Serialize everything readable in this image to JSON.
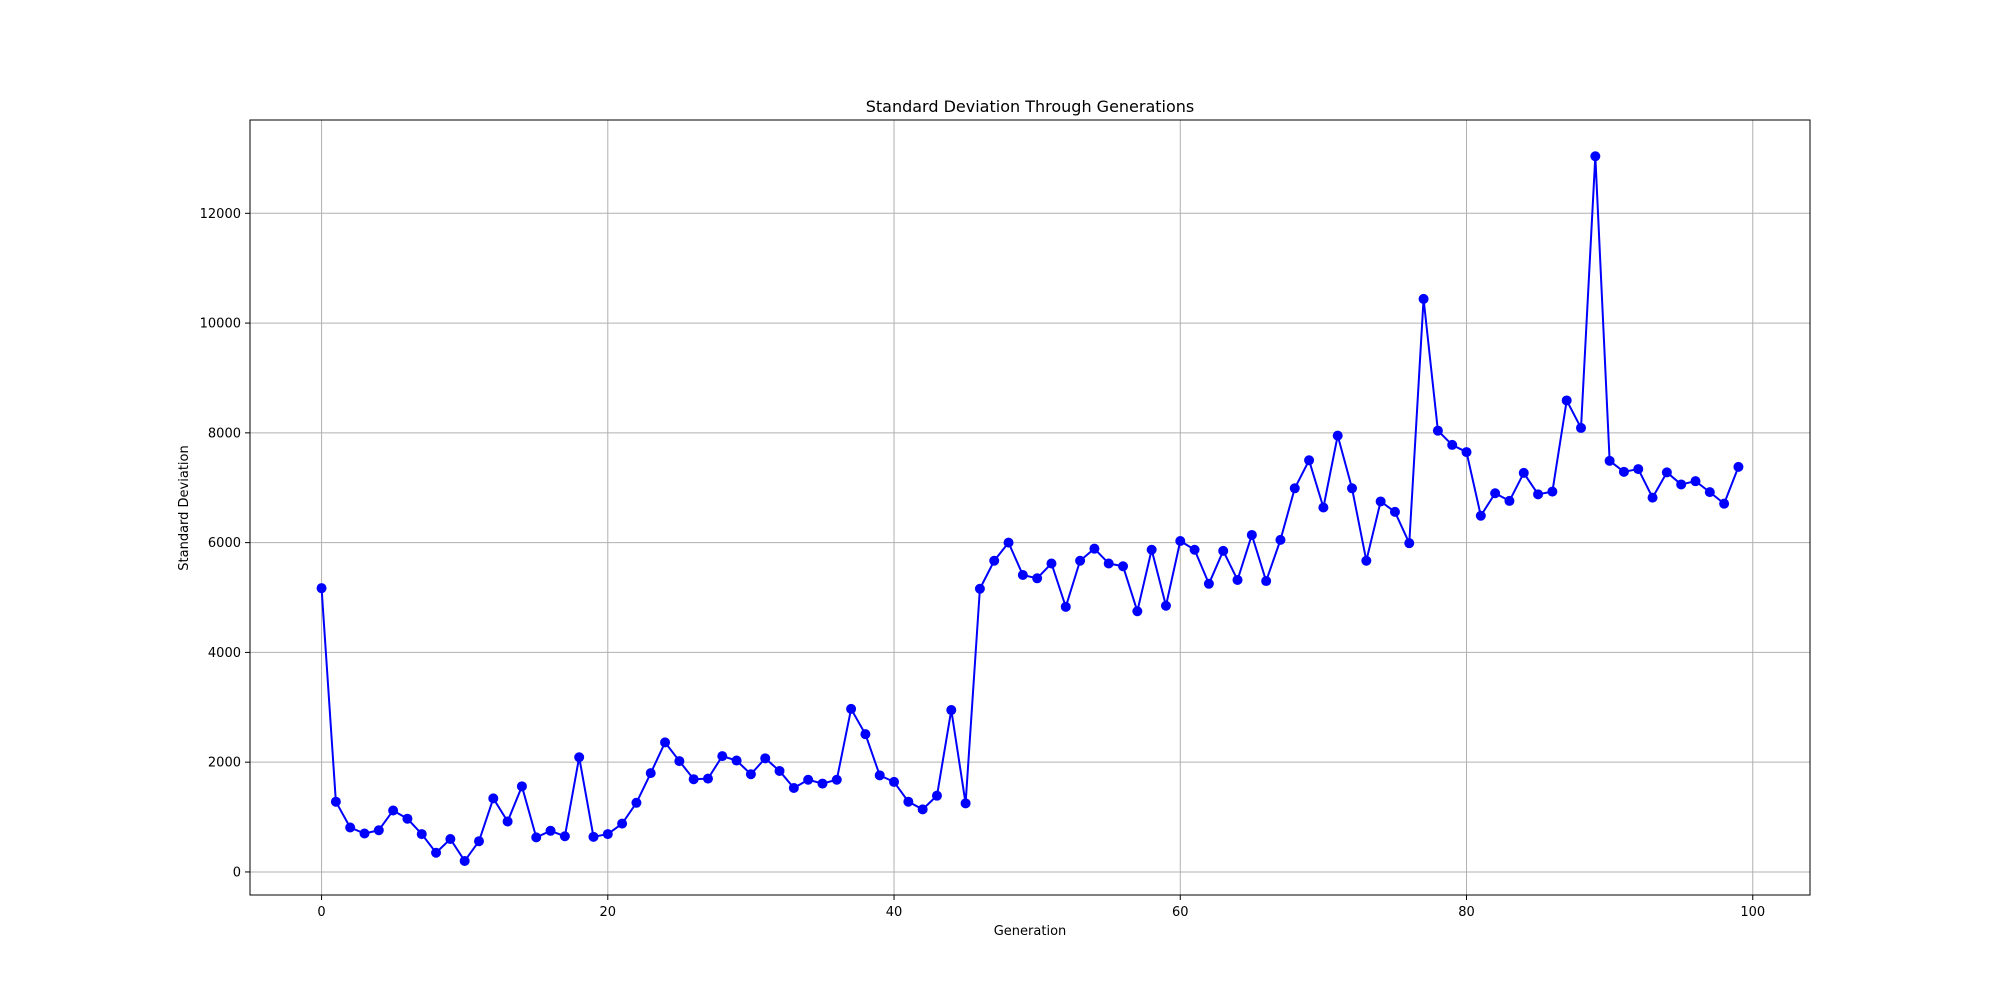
{
  "chart_data": {
    "type": "line",
    "title": "Standard Deviation Through Generations",
    "xlabel": "Generation",
    "ylabel": "Standard Deviation",
    "xlim": [
      -5,
      104
    ],
    "ylim": [
      -420,
      13700
    ],
    "xticks": [
      0,
      20,
      40,
      60,
      80,
      100
    ],
    "yticks": [
      0,
      2000,
      4000,
      6000,
      8000,
      10000,
      12000
    ],
    "grid": true,
    "legend": "none",
    "colors": {
      "series": "#0000ff",
      "grid": "#b0b0b0",
      "axes": "#000000"
    },
    "series": [
      {
        "values": [
          5170,
          1280,
          810,
          700,
          760,
          1120,
          970,
          690,
          350,
          600,
          200,
          560,
          1340,
          920,
          1560,
          630,
          750,
          650,
          2090,
          640,
          690,
          880,
          1260,
          1800,
          2360,
          2020,
          1690,
          1700,
          2110,
          2030,
          1780,
          2070,
          1840,
          1530,
          1680,
          1610,
          1680,
          2970,
          2510,
          1760,
          1640,
          1280,
          1140,
          1390,
          2950,
          1250,
          5160,
          5670,
          6000,
          5410,
          5350,
          5620,
          4830,
          5670,
          5890,
          5620,
          5570,
          4750,
          5870,
          4850,
          6030,
          5870,
          5250,
          5850,
          5320,
          6140,
          5300,
          6050,
          6990,
          7500,
          6640,
          7950,
          6990,
          5670,
          6750,
          6560,
          5990,
          10440,
          8040,
          7780,
          7650,
          6490,
          6900,
          6760,
          7270,
          6880,
          6930,
          8590,
          8090,
          13040,
          7490,
          7290,
          7340,
          6820,
          7280,
          7060,
          7120,
          6920,
          6710,
          7380
        ]
      }
    ]
  }
}
